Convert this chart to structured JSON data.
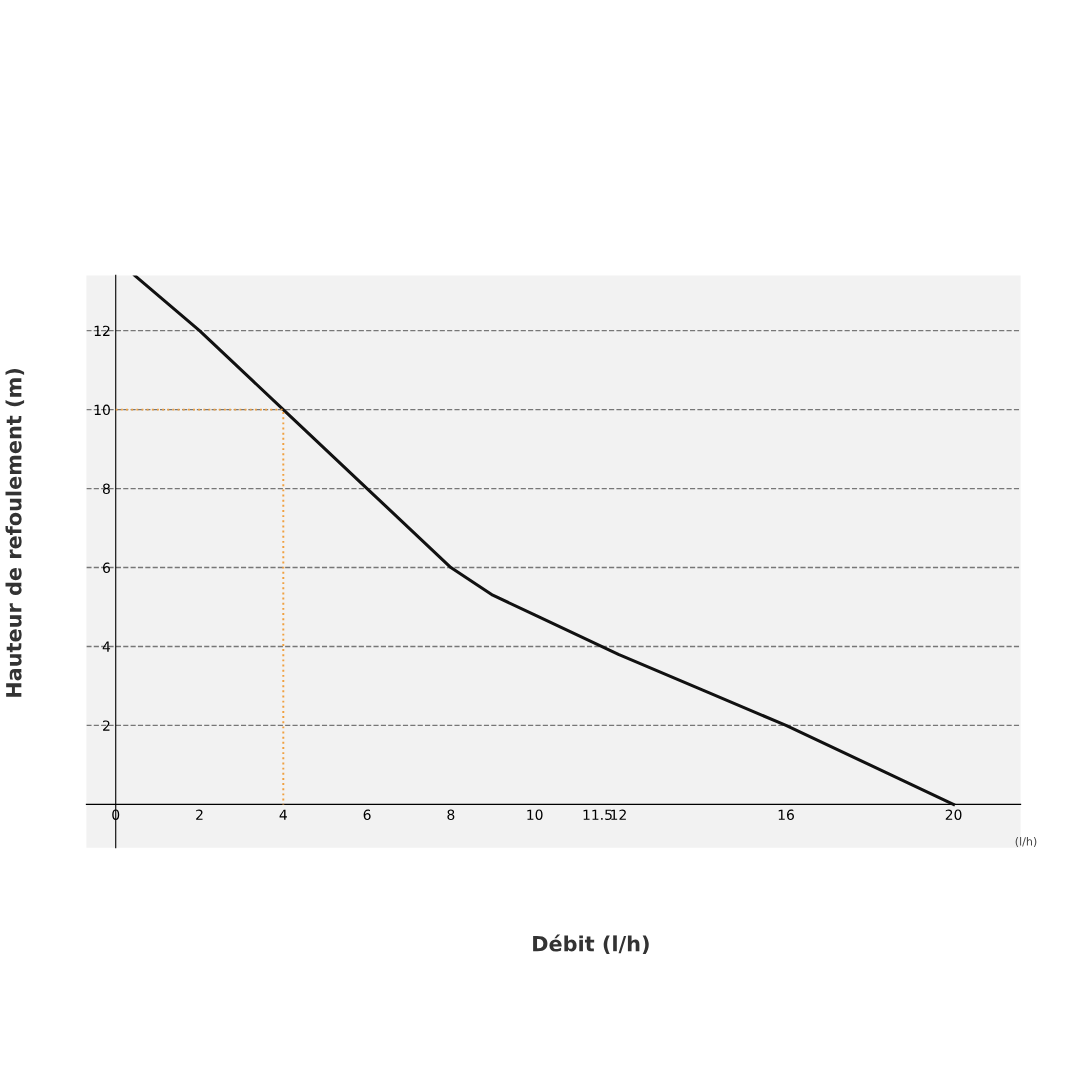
{
  "chart_data": {
    "type": "line",
    "xlabel": "Débit (l/h)",
    "ylabel": "Hauteur de refoulement (m)",
    "series": [
      {
        "color": "#111111",
        "line_style": "solid",
        "x": [
          0.45,
          2,
          4,
          6,
          8,
          9,
          10,
          12,
          14,
          16,
          18,
          20
        ],
        "values": [
          13.4,
          12,
          10,
          8,
          6,
          5.3,
          4.8,
          3.8,
          2.9,
          2,
          1,
          0
        ]
      },
      {
        "color": "#f0a040",
        "line_style": "dotted",
        "x": [
          0,
          4,
          4
        ],
        "values": [
          10,
          10,
          0
        ]
      }
    ],
    "xlim": [
      -0.7,
      21.6
    ],
    "ylim": [
      -1.1,
      13.4
    ],
    "xticks": [
      0,
      2,
      4,
      6,
      8,
      10,
      11.5,
      12,
      16,
      20
    ],
    "yticks": [
      2,
      4,
      6,
      8,
      10,
      12
    ],
    "grid": "y",
    "annotations": [
      "(l/h)"
    ]
  }
}
